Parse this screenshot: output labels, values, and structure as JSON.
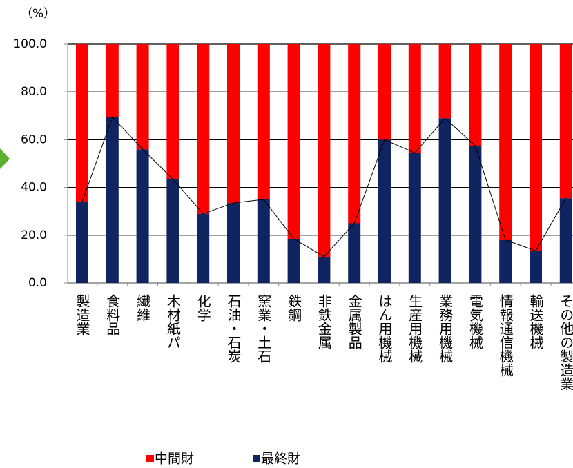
{
  "chart_data": {
    "type": "stacked_bar",
    "y_unit_label": "（%）",
    "categories": [
      "製造業",
      "食料品",
      "繊維",
      "木材紙パ",
      "化学",
      "石油・石炭",
      "窯業・土石",
      "鉄鋼",
      "非鉄金属",
      "金属製品",
      "はん用機械",
      "生産用機械",
      "業務用機械",
      "電気機械",
      "情報通信機械",
      "輸送機械",
      "その他の製造業"
    ],
    "series": [
      {
        "name": "中間財",
        "color": "#ff0000",
        "values": [
          66,
          30.5,
          44,
          56.5,
          71,
          66.5,
          65,
          81.5,
          89,
          75,
          40,
          45.5,
          31,
          42.5,
          82,
          86.5,
          64.5
        ]
      },
      {
        "name": "最終財",
        "color": "#0f2461",
        "values": [
          34,
          69.5,
          56,
          43.5,
          29,
          33.5,
          35,
          18.5,
          11,
          25,
          60,
          54.5,
          69,
          57.5,
          18,
          13.5,
          35.5
        ]
      }
    ],
    "ylim": [
      0,
      100
    ],
    "yticks": [
      {
        "value": 0,
        "label": "0.0"
      },
      {
        "value": 20,
        "label": "20.0"
      },
      {
        "value": 40,
        "label": "40.0"
      },
      {
        "value": 60,
        "label": "60.0"
      },
      {
        "value": 80,
        "label": "80.0"
      },
      {
        "value": 100,
        "label": "100.0"
      }
    ],
    "grid": true
  }
}
